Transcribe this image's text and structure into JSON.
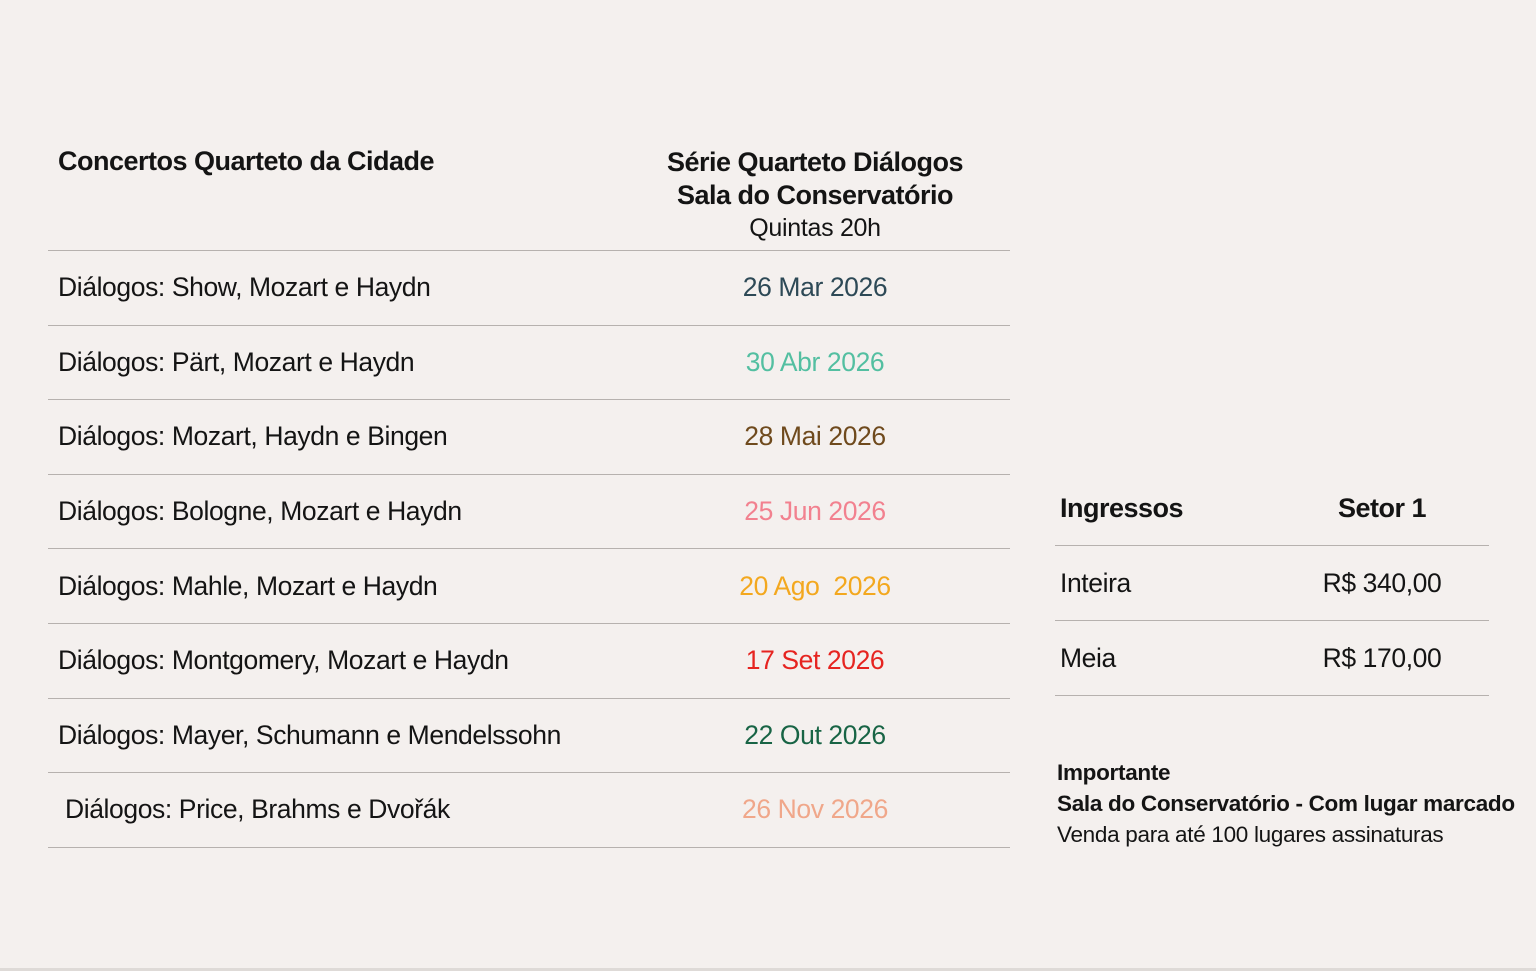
{
  "page": {
    "background": "#f4f0ee",
    "divider_color": "#b6b1ae",
    "text_color": "#141414"
  },
  "schedule": {
    "title": "Concertos Quarteto da Cidade",
    "series_title": "Série Quarteto Diálogos",
    "series_venue": "Sala do Conservatório",
    "series_time": "Quintas 20h",
    "rows": [
      {
        "program": "Diálogos: Show, Mozart e Haydn",
        "date": "26 Mar 2026",
        "date_color": "#2d4956"
      },
      {
        "program": "Diálogos: Pärt, Mozart e Haydn",
        "date": "30 Abr 2026",
        "date_color": "#53bfa1"
      },
      {
        "program": "Diálogos: Mozart, Haydn e Bingen",
        "date": "28 Mai 2026",
        "date_color": "#6f4a1d"
      },
      {
        "program": "Diálogos: Bologne, Mozart e Haydn",
        "date": "25 Jun 2026",
        "date_color": "#f2818f"
      },
      {
        "program": "Diálogos: Mahle, Mozart e Haydn",
        "date": "20 Ago  2026",
        "date_color": "#f3a81f"
      },
      {
        "program": "Diálogos: Montgomery, Mozart e Haydn",
        "date": "17 Set 2026",
        "date_color": "#e62420"
      },
      {
        "program": "Diálogos: Mayer, Schumann e Mendelssohn",
        "date": "22 Out 2026",
        "date_color": "#186445"
      },
      {
        "program": " Diálogos: Price, Brahms e Dvořák",
        "date": "26 Nov 2026",
        "date_color": "#f0a78a"
      }
    ]
  },
  "tickets": {
    "header_label": "Ingressos",
    "header_value": "Setor 1",
    "rows": [
      {
        "label": "Inteira",
        "price": "R$ 340,00"
      },
      {
        "label": "Meia",
        "price": "R$ 170,00"
      }
    ]
  },
  "notes": {
    "title": "Importante",
    "seating": "Sala do Conservatório - Com lugar marcado",
    "sales": "Venda para até 100 lugares assinaturas"
  }
}
